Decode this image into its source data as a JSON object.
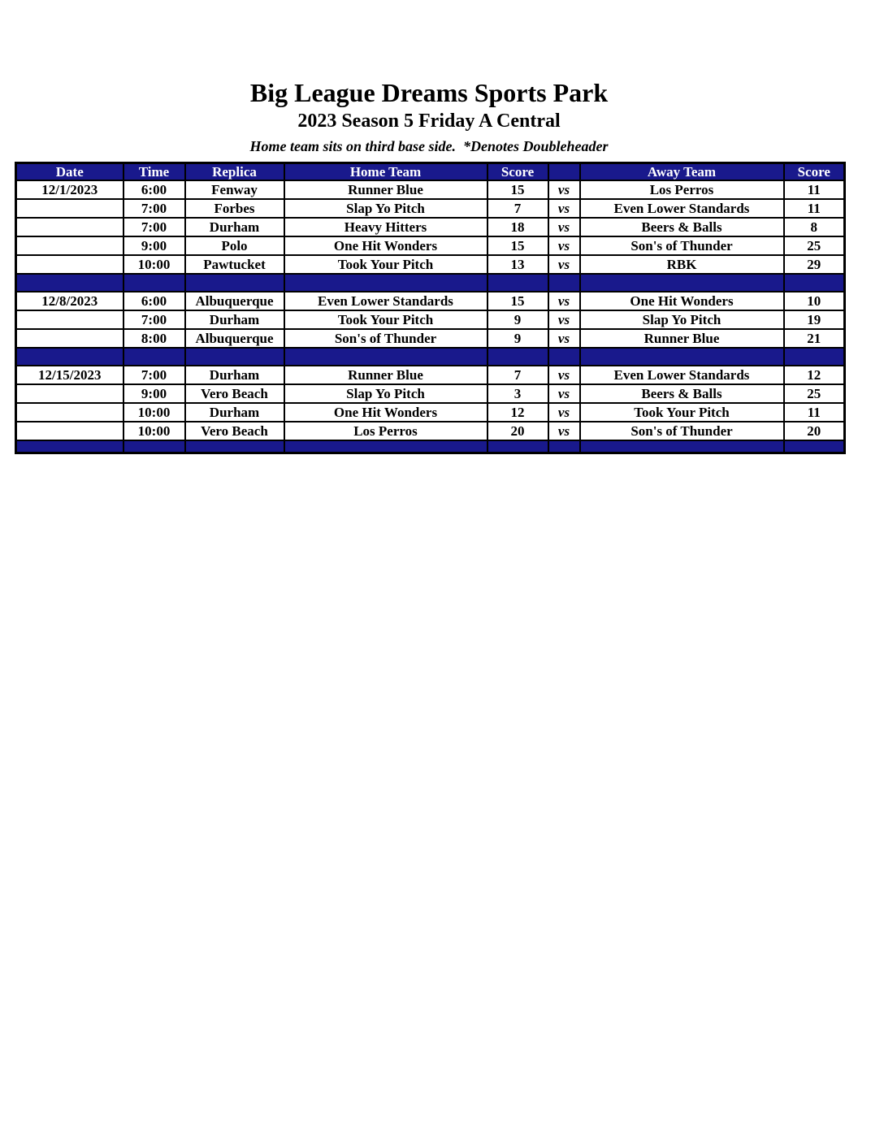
{
  "header": {
    "title": "Big League Dreams Sports Park",
    "subtitle": "2023 Season 5 Friday A Central",
    "note": "Home team sits on third base side.  *Denotes Doubleheader"
  },
  "table": {
    "headers": [
      "Date",
      "Time",
      "Replica",
      "Home Team",
      "Score",
      "",
      "Away Team",
      "Score"
    ],
    "vs_label": "vs",
    "colors": {
      "header_bg": "#19198C",
      "header_text": "#FFFFFF",
      "highlight": "#FFFF00",
      "border": "#000000"
    },
    "sections": [
      {
        "date": "12/1/2023",
        "games": [
          {
            "time": "6:00",
            "replica": "Fenway",
            "home": "Runner Blue",
            "home_score": "15",
            "home_highlight": true,
            "away": "Los Perros",
            "away_score": "11",
            "away_highlight": false
          },
          {
            "time": "7:00",
            "replica": "Forbes",
            "home": "Slap Yo Pitch",
            "home_score": "7",
            "home_highlight": false,
            "away": "Even Lower Standards",
            "away_score": "11",
            "away_highlight": true
          },
          {
            "time": "7:00",
            "replica": "Durham",
            "home": "Heavy Hitters",
            "home_score": "18",
            "home_highlight": true,
            "away": "Beers & Balls",
            "away_score": "8",
            "away_highlight": false
          },
          {
            "time": "9:00",
            "replica": "Polo",
            "home": "One Hit Wonders",
            "home_score": "15",
            "home_highlight": false,
            "away": "Son's of Thunder",
            "away_score": "25",
            "away_highlight": true
          },
          {
            "time": "10:00",
            "replica": "Pawtucket",
            "home": "Took Your Pitch",
            "home_score": "13",
            "home_highlight": false,
            "away": "RBK",
            "away_score": "29",
            "away_highlight": true
          }
        ]
      },
      {
        "date": "12/8/2023",
        "games": [
          {
            "time": "6:00",
            "replica": "Albuquerque",
            "home": "Even Lower Standards",
            "home_score": "15",
            "home_highlight": true,
            "away": "One Hit Wonders",
            "away_score": "10",
            "away_highlight": false
          },
          {
            "time": "7:00",
            "replica": "Durham",
            "home": "Took Your Pitch",
            "home_score": "9",
            "home_highlight": false,
            "away": "Slap Yo Pitch",
            "away_score": "19",
            "away_highlight": true
          },
          {
            "time": "8:00",
            "replica": "Albuquerque",
            "home": "Son's of Thunder",
            "home_score": "9",
            "home_highlight": false,
            "away": "Runner Blue",
            "away_score": "21",
            "away_highlight": true
          }
        ]
      },
      {
        "date": "12/15/2023",
        "games": [
          {
            "time": "7:00",
            "replica": "Durham",
            "home": "Runner Blue",
            "home_score": "7",
            "home_highlight": false,
            "away": "Even Lower Standards",
            "away_score": "12",
            "away_highlight": true
          },
          {
            "time": "9:00",
            "replica": "Vero Beach",
            "home": "Slap Yo Pitch",
            "home_score": "3",
            "home_highlight": false,
            "away": "Beers & Balls",
            "away_score": "25",
            "away_highlight": true
          },
          {
            "time": "10:00",
            "replica": "Durham",
            "home": "One Hit Wonders",
            "home_score": "12",
            "home_highlight": true,
            "away": "Took Your Pitch",
            "away_score": "11",
            "away_highlight": false
          },
          {
            "time": "10:00",
            "replica": "Vero Beach",
            "home": "Los Perros",
            "home_score": "20",
            "home_highlight": true,
            "away": "Son's of Thunder",
            "away_score": "20",
            "away_highlight": true
          }
        ]
      }
    ]
  }
}
